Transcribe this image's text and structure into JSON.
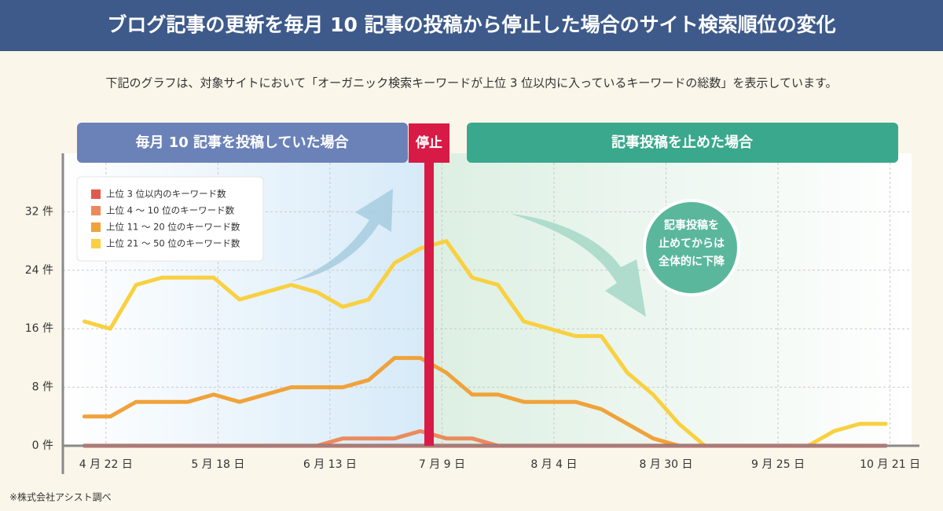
{
  "chart_data": {
    "type": "line",
    "title": "ブログ記事の更新を毎月 10 記事の投稿から停止した場合のサイト検索順位の変化",
    "subtitle": "下記のグラフは、対象サイトにおいて「オーガニック検索キーワードが上位 3 位以内に入っているキーワードの総数」を表示しています。",
    "phase_labels": [
      "毎月 10 記事を投稿していた場合",
      "記事投稿を止めた場合"
    ],
    "stop": {
      "label": "停止",
      "x": 75
    },
    "annotation": [
      "記事投稿を",
      "止めてからは",
      "全体的に下降"
    ],
    "source": "※株式会社アシスト調べ",
    "x": [
      -5,
      1,
      7,
      13,
      19,
      25,
      31,
      37,
      43,
      49,
      55,
      61,
      67,
      73,
      79,
      85,
      91,
      97,
      103,
      109,
      115,
      121,
      127,
      133,
      139,
      145,
      151,
      157,
      163,
      169,
      175,
      181
    ],
    "xlim": [
      -10,
      187
    ],
    "xticks": [
      {
        "value": 0,
        "label": "4 月 22 日"
      },
      {
        "value": 26,
        "label": "5 月 18 日"
      },
      {
        "value": 52,
        "label": "6 月 13 日"
      },
      {
        "value": 78,
        "label": "7 月 9 日"
      },
      {
        "value": 104,
        "label": "8 月 4 日"
      },
      {
        "value": 130,
        "label": "8 月 30 日"
      },
      {
        "value": 156,
        "label": "9 月 25 日"
      },
      {
        "value": 182,
        "label": "10 月 21 日"
      }
    ],
    "ylim": [
      0,
      40
    ],
    "yticks": [
      {
        "value": 0,
        "label": "0 件"
      },
      {
        "value": 8,
        "label": "8 件"
      },
      {
        "value": 16,
        "label": "16 件"
      },
      {
        "value": 24,
        "label": "24 件"
      },
      {
        "value": 32,
        "label": "32 件"
      }
    ],
    "grid": true,
    "legend": "upper left",
    "series": [
      {
        "name": "上位 3 位以内のキーワード数",
        "color": "#e05a4e",
        "values": [
          0,
          0,
          0,
          0,
          0,
          0,
          0,
          0,
          0,
          0,
          0,
          0,
          0,
          0,
          0,
          0,
          0,
          0,
          0,
          0,
          0,
          0,
          0,
          0,
          0,
          0,
          0,
          0,
          0,
          0,
          0,
          0
        ]
      },
      {
        "name": "上位 4 ～ 10 位のキーワード数",
        "color": "#ec8a5c",
        "values": [
          0,
          0,
          0,
          0,
          0,
          0,
          0,
          0,
          0,
          0,
          1,
          1,
          1,
          2,
          1,
          1,
          0,
          0,
          0,
          0,
          0,
          0,
          0,
          0,
          0,
          0,
          0,
          0,
          0,
          0,
          0,
          0
        ]
      },
      {
        "name": "上位 11 ～ 20 位のキーワード数",
        "color": "#f0a23a",
        "values": [
          4,
          4,
          6,
          6,
          6,
          7,
          6,
          7,
          8,
          8,
          8,
          9,
          12,
          12,
          10,
          7,
          7,
          6,
          6,
          6,
          5,
          3,
          1,
          0,
          0,
          0,
          0,
          0,
          0,
          0,
          0,
          0
        ]
      },
      {
        "name": "上位 21 ～ 50 位のキーワード数",
        "color": "#f9d040",
        "values": [
          17,
          16,
          22,
          23,
          23,
          23,
          20,
          21,
          22,
          21,
          19,
          20,
          25,
          27,
          28,
          23,
          22,
          17,
          16,
          15,
          15,
          10,
          7,
          3,
          0,
          0,
          0,
          0,
          0,
          2,
          3,
          3
        ]
      }
    ]
  }
}
